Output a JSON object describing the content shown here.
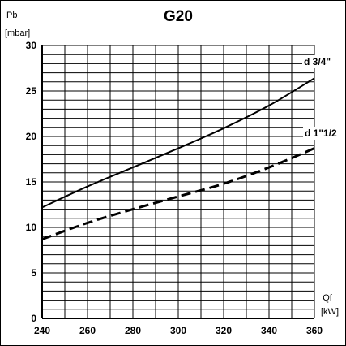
{
  "chart_data": {
    "type": "line",
    "title": "G20",
    "ylabel": "Pb",
    "ylabel_unit": "[mbar]",
    "xlabel": "Qf",
    "xlabel_unit": "[kW]",
    "xlim": [
      240,
      360
    ],
    "ylim": [
      0,
      30
    ],
    "x_ticks": [
      240,
      260,
      280,
      300,
      320,
      340,
      360
    ],
    "y_ticks": [
      0,
      5,
      10,
      15,
      20,
      25,
      30
    ],
    "x_minor_step": 10,
    "y_minor_step": 1,
    "grid": true,
    "series": [
      {
        "name": "d 3/4\"",
        "style": "solid",
        "x": [
          240,
          260,
          280,
          300,
          320,
          340,
          360
        ],
        "y": [
          12.2,
          14.5,
          16.6,
          18.7,
          20.9,
          23.4,
          26.4
        ]
      },
      {
        "name": "d 1\"1/2",
        "style": "dashed",
        "x": [
          240,
          260,
          280,
          300,
          320,
          340,
          360
        ],
        "y": [
          8.7,
          10.5,
          12.0,
          13.4,
          14.8,
          16.6,
          18.7
        ]
      }
    ]
  }
}
